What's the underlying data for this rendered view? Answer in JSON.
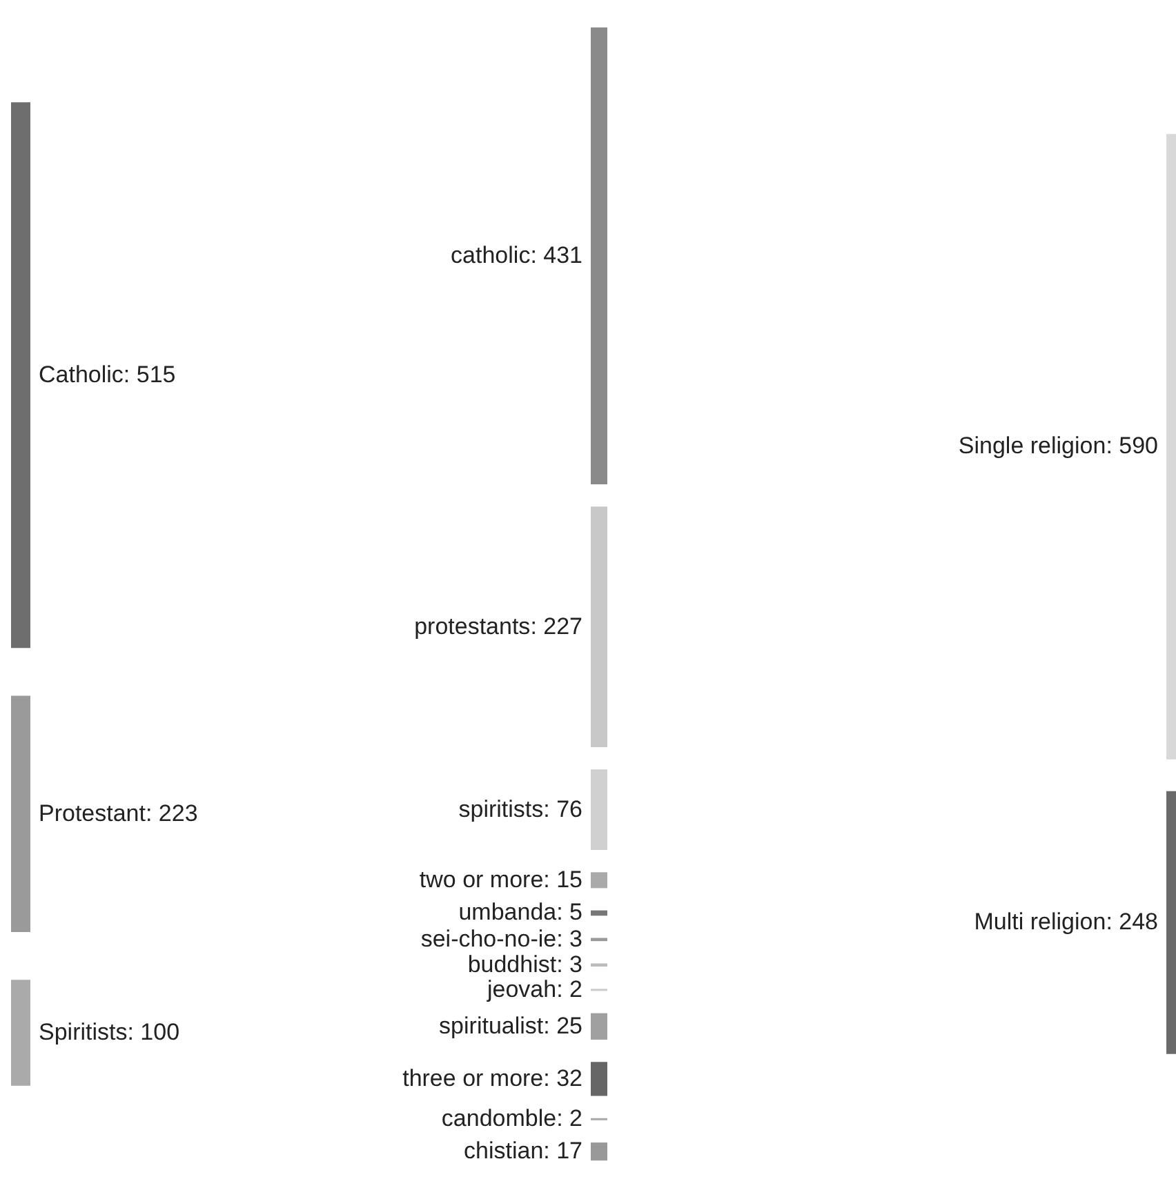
{
  "chart_data": [
    {
      "type": "other",
      "categories": [
        "Catholic",
        "Protestant",
        "Spiritists"
      ],
      "values": [
        515,
        223,
        100
      ],
      "value_labels": [
        ": 515",
        ": 223",
        ": 100"
      ],
      "colors": [
        "#6e6e6e",
        "#9a9a9a",
        "#aaaaaa"
      ]
    },
    {
      "type": "other",
      "categories": [
        "catholic",
        "protestants",
        "spiritists",
        "two or more",
        "umbanda",
        "sei-cho-no-ie",
        "buddhist",
        "jeovah",
        "spiritualist",
        "three or more",
        "candomble",
        "chistian"
      ],
      "values": [
        431,
        227,
        76,
        15,
        5,
        3,
        3,
        2,
        25,
        32,
        2,
        17
      ],
      "value_labels": [
        ": 431",
        ": 227",
        ": 76",
        ": 15",
        ": 5",
        ": 3",
        ": 3",
        ": 2",
        ": 25",
        ": 32",
        ": 2",
        ": 17"
      ],
      "colors": [
        "#8a8a8a",
        "#c8c8c8",
        "#d0d0d0",
        "#aaaaaa",
        "#777777",
        "#999999",
        "#bbbbbb",
        "#cccccc",
        "#a0a0a0",
        "#666666",
        "#aaaaaa",
        "#999999"
      ]
    },
    {
      "type": "other",
      "categories": [
        "Single religion",
        "Multi religion"
      ],
      "values": [
        590,
        248
      ],
      "value_labels": [
        ": 590",
        ": 248"
      ],
      "colors": [
        "#d8d8d8",
        "#6a6a6a"
      ]
    }
  ]
}
